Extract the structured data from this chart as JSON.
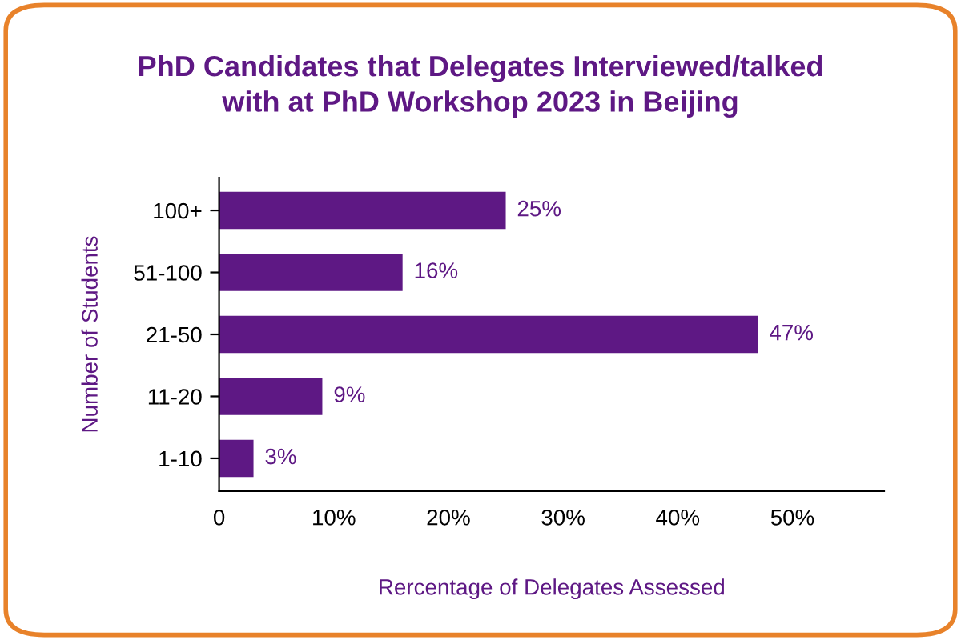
{
  "chart_data": {
    "type": "bar",
    "orientation": "horizontal",
    "title": "PhD Candidates that Delegates Interviewed/talked\nwith at PhD Workshop 2023 in Beijing",
    "xlabel": "Rercentage of Delegates Assessed",
    "ylabel": "Number of Students",
    "categories": [
      "100+",
      "51-100",
      "21-50",
      "11-20",
      "1-10"
    ],
    "values": [
      25,
      16,
      47,
      9,
      3
    ],
    "value_labels": [
      "25%",
      "16%",
      "47%",
      "9%",
      "3%"
    ],
    "color": "#5e1884",
    "xlim": [
      0,
      58
    ],
    "xticks": [
      0,
      {
        "value": 10,
        "label": "10%"
      },
      {
        "value": 20,
        "label": "20%"
      },
      {
        "value": 30,
        "label": "30%"
      },
      {
        "value": 40,
        "label": "40%"
      },
      {
        "value": 50,
        "label": "50%"
      }
    ],
    "grid": false,
    "legend": false
  }
}
